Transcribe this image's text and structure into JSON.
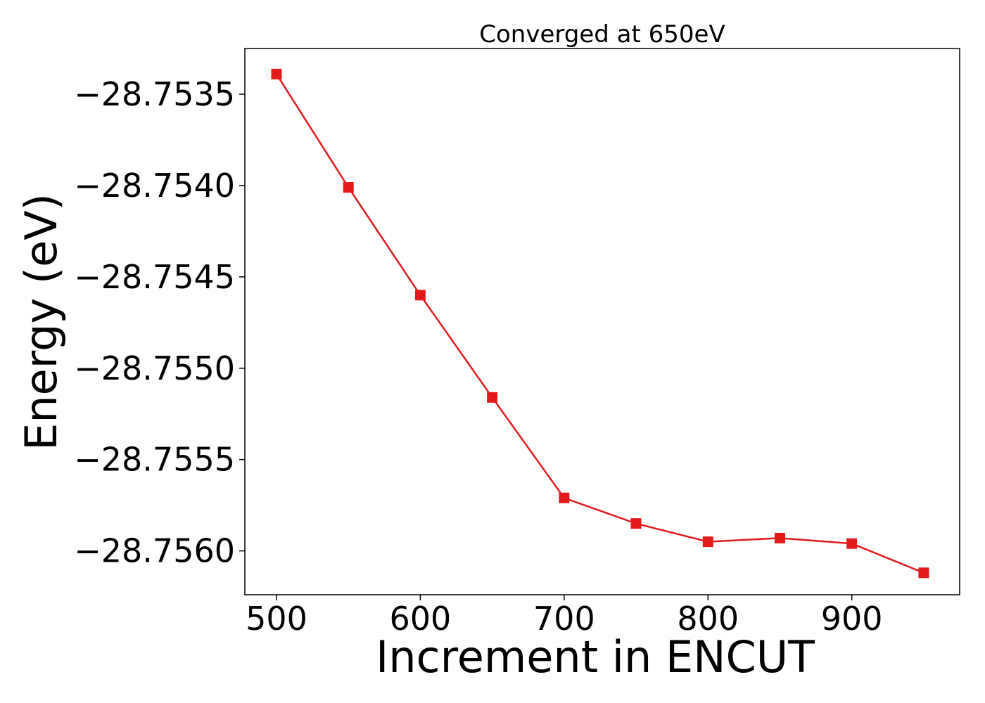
{
  "chart_data": {
    "type": "line",
    "title": "Converged at 650eV",
    "xlabel": "Increment in ENCUT",
    "ylabel": "Energy (eV)",
    "x": [
      500,
      550,
      600,
      650,
      700,
      750,
      800,
      850,
      900,
      950
    ],
    "series": [
      {
        "values": [
          -28.75339,
          -28.75401,
          -28.7546,
          -28.75516,
          -28.75571,
          -28.75585,
          -28.75595,
          -28.75593,
          -28.75596,
          -28.75612
        ],
        "color": "#e31a1c",
        "marker": "square"
      }
    ],
    "xticks": [
      500,
      600,
      700,
      800,
      900
    ],
    "xtick_labels": [
      "500",
      "600",
      "700",
      "800",
      "900"
    ],
    "yticks": [
      -28.7535,
      -28.754,
      -28.7545,
      -28.755,
      -28.7555,
      -28.756
    ],
    "ytick_labels": [
      "−28.7535",
      "−28.7540",
      "−28.7545",
      "−28.7550",
      "−28.7555",
      "−28.7560"
    ],
    "xlim": [
      478,
      975
    ],
    "ylim": [
      -28.75624,
      -28.75325
    ],
    "grid": false,
    "legend": false
  }
}
